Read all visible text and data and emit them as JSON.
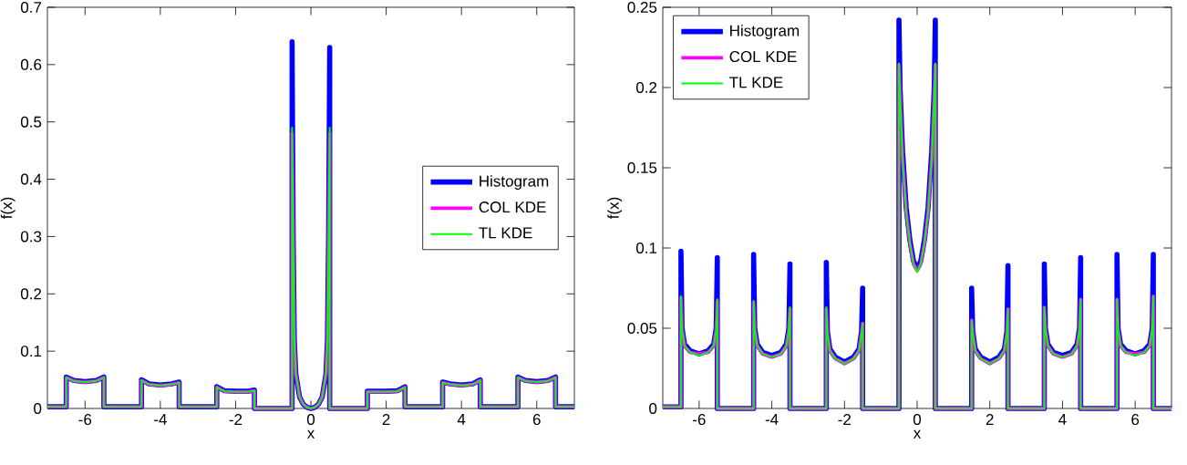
{
  "chart_data": [
    {
      "type": "line",
      "xlabel": "x",
      "ylabel": "f(x)",
      "xlim": [
        -7,
        7
      ],
      "ylim": [
        0,
        0.7
      ],
      "xticks": [
        -6,
        -4,
        -2,
        0,
        2,
        4,
        6
      ],
      "yticks": [
        0,
        0.1,
        0.2,
        0.3,
        0.4,
        0.5,
        0.6,
        0.7
      ],
      "legend": "right",
      "x": [
        -7,
        -6.5,
        -6.5,
        -6.3,
        -6,
        -5.7,
        -5.5,
        -5.5,
        -4.5,
        -4.5,
        -4.3,
        -4,
        -3.7,
        -3.5,
        -3.5,
        -2.5,
        -2.5,
        -2.3,
        -2,
        -1.7,
        -1.5,
        -1.5,
        -0.5,
        -0.5,
        -0.47,
        -0.44,
        -0.4,
        -0.3,
        -0.2,
        -0.1,
        0,
        0.1,
        0.2,
        0.3,
        0.4,
        0.44,
        0.47,
        0.5,
        0.5,
        1.5,
        1.5,
        1.7,
        2,
        2.3,
        2.5,
        2.5,
        3.5,
        3.5,
        3.7,
        4,
        4.3,
        4.5,
        4.5,
        5.5,
        5.5,
        5.7,
        6,
        6.3,
        6.5,
        6.5,
        7
      ],
      "series": [
        {
          "name": "Histogram",
          "color": "#0000ff",
          "values": [
            0.003,
            0.003,
            0.055,
            0.049,
            0.047,
            0.049,
            0.055,
            0.003,
            0.003,
            0.05,
            0.043,
            0.041,
            0.043,
            0.046,
            0.003,
            0.003,
            0.038,
            0.031,
            0.03,
            0.03,
            0.032,
            0,
            0,
            0.64,
            0.3,
            0.12,
            0.06,
            0.02,
            0.007,
            0.002,
            0,
            0.002,
            0.007,
            0.02,
            0.06,
            0.12,
            0.3,
            0.63,
            0,
            0,
            0.03,
            0.03,
            0.03,
            0.031,
            0.038,
            0.003,
            0.003,
            0.046,
            0.043,
            0.041,
            0.043,
            0.05,
            0.003,
            0.003,
            0.055,
            0.049,
            0.047,
            0.049,
            0.055,
            0.003,
            0.003
          ]
        },
        {
          "name": "COL KDE",
          "color": "#ff00ff",
          "values": [
            0.003,
            0.003,
            0.054,
            0.048,
            0.046,
            0.048,
            0.054,
            0.003,
            0.003,
            0.049,
            0.042,
            0.04,
            0.042,
            0.045,
            0.003,
            0.003,
            0.037,
            0.03,
            0.029,
            0.029,
            0.031,
            0,
            0,
            0.48,
            0.3,
            0.12,
            0.06,
            0.02,
            0.007,
            0.002,
            0,
            0.002,
            0.007,
            0.02,
            0.06,
            0.12,
            0.3,
            0.48,
            0,
            0,
            0.029,
            0.029,
            0.029,
            0.03,
            0.037,
            0.003,
            0.003,
            0.045,
            0.042,
            0.04,
            0.042,
            0.049,
            0.003,
            0.003,
            0.054,
            0.048,
            0.046,
            0.048,
            0.054,
            0.003,
            0.003
          ]
        },
        {
          "name": "TL KDE",
          "color": "#00ff00",
          "values": [
            0.003,
            0.003,
            0.054,
            0.048,
            0.046,
            0.048,
            0.054,
            0.003,
            0.003,
            0.049,
            0.042,
            0.04,
            0.042,
            0.045,
            0.003,
            0.003,
            0.037,
            0.03,
            0.029,
            0.029,
            0.031,
            0,
            0,
            0.49,
            0.3,
            0.12,
            0.06,
            0.02,
            0.007,
            0.002,
            0,
            0.002,
            0.007,
            0.02,
            0.06,
            0.12,
            0.3,
            0.49,
            0,
            0,
            0.029,
            0.029,
            0.029,
            0.03,
            0.037,
            0.003,
            0.003,
            0.045,
            0.042,
            0.04,
            0.042,
            0.049,
            0.003,
            0.003,
            0.054,
            0.048,
            0.046,
            0.048,
            0.054,
            0.003,
            0.003
          ]
        }
      ]
    },
    {
      "type": "line",
      "xlabel": "x",
      "ylabel": "f(x)",
      "xlim": [
        -7,
        7
      ],
      "ylim": [
        0,
        0.25
      ],
      "xticks": [
        -6,
        -4,
        -2,
        0,
        2,
        4,
        6
      ],
      "yticks": [
        0,
        0.05,
        0.1,
        0.15,
        0.2,
        0.25
      ],
      "legend": "top left",
      "x": [
        -7,
        -6.5,
        -6.5,
        -6.47,
        -6.4,
        -6.25,
        -6,
        -5.75,
        -5.6,
        -5.53,
        -5.5,
        -5.5,
        -4.5,
        -4.5,
        -4.47,
        -4.4,
        -4.25,
        -4,
        -3.75,
        -3.6,
        -3.53,
        -3.5,
        -3.5,
        -2.5,
        -2.5,
        -2.47,
        -2.4,
        -2.25,
        -2,
        -1.75,
        -1.6,
        -1.53,
        -1.5,
        -1.5,
        -0.5,
        -0.5,
        -0.47,
        -0.4,
        -0.3,
        -0.2,
        -0.1,
        0,
        0.1,
        0.2,
        0.3,
        0.4,
        0.47,
        0.5,
        0.5,
        1.5,
        1.5,
        1.53,
        1.6,
        1.75,
        2,
        2.25,
        2.4,
        2.47,
        2.5,
        2.5,
        3.5,
        3.5,
        3.53,
        3.6,
        3.75,
        4,
        4.25,
        4.4,
        4.47,
        4.5,
        4.5,
        5.5,
        5.5,
        5.53,
        5.6,
        5.75,
        6,
        6.25,
        6.4,
        6.47,
        6.5,
        6.5,
        7
      ],
      "series": [
        {
          "name": "Histogram",
          "color": "#0000ff",
          "values": [
            0.001,
            0.001,
            0.098,
            0.05,
            0.04,
            0.036,
            0.034,
            0.036,
            0.04,
            0.05,
            0.094,
            0,
            0,
            0.096,
            0.05,
            0.04,
            0.035,
            0.033,
            0.035,
            0.04,
            0.05,
            0.09,
            0,
            0,
            0.091,
            0.048,
            0.037,
            0.032,
            0.029,
            0.032,
            0.037,
            0.048,
            0.075,
            0,
            0,
            0.242,
            0.2,
            0.16,
            0.125,
            0.105,
            0.092,
            0.087,
            0.092,
            0.105,
            0.125,
            0.16,
            0.2,
            0.242,
            0,
            0,
            0.075,
            0.048,
            0.037,
            0.032,
            0.029,
            0.032,
            0.037,
            0.048,
            0.089,
            0,
            0,
            0.09,
            0.05,
            0.04,
            0.035,
            0.033,
            0.035,
            0.04,
            0.05,
            0.094,
            0,
            0,
            0.096,
            0.05,
            0.04,
            0.036,
            0.034,
            0.036,
            0.04,
            0.05,
            0.096,
            0,
            0
          ]
        },
        {
          "name": "COL KDE",
          "color": "#ff00ff",
          "values": [
            0.001,
            0.001,
            0.069,
            0.049,
            0.039,
            0.035,
            0.034,
            0.035,
            0.039,
            0.049,
            0.067,
            0,
            0,
            0.066,
            0.049,
            0.039,
            0.034,
            0.032,
            0.034,
            0.039,
            0.049,
            0.062,
            0,
            0,
            0.062,
            0.047,
            0.036,
            0.031,
            0.028,
            0.031,
            0.036,
            0.047,
            0.053,
            0,
            0,
            0.214,
            0.195,
            0.155,
            0.122,
            0.103,
            0.09,
            0.086,
            0.09,
            0.103,
            0.122,
            0.155,
            0.195,
            0.214,
            0,
            0,
            0.055,
            0.047,
            0.036,
            0.031,
            0.028,
            0.031,
            0.036,
            0.047,
            0.062,
            0,
            0,
            0.063,
            0.049,
            0.039,
            0.034,
            0.032,
            0.034,
            0.039,
            0.049,
            0.068,
            0,
            0,
            0.068,
            0.049,
            0.039,
            0.035,
            0.034,
            0.035,
            0.039,
            0.049,
            0.07,
            0,
            0
          ]
        },
        {
          "name": "TL KDE",
          "color": "#00ff00",
          "values": [
            0.001,
            0.001,
            0.07,
            0.049,
            0.039,
            0.035,
            0.033,
            0.035,
            0.039,
            0.049,
            0.068,
            0,
            0,
            0.067,
            0.049,
            0.039,
            0.034,
            0.032,
            0.034,
            0.039,
            0.049,
            0.063,
            0,
            0,
            0.063,
            0.047,
            0.036,
            0.031,
            0.028,
            0.031,
            0.036,
            0.047,
            0.053,
            0,
            0,
            0.215,
            0.195,
            0.155,
            0.122,
            0.103,
            0.09,
            0.085,
            0.09,
            0.103,
            0.122,
            0.155,
            0.195,
            0.215,
            0,
            0,
            0.055,
            0.047,
            0.036,
            0.031,
            0.028,
            0.031,
            0.036,
            0.047,
            0.062,
            0,
            0,
            0.063,
            0.049,
            0.039,
            0.034,
            0.032,
            0.034,
            0.039,
            0.049,
            0.068,
            0,
            0,
            0.068,
            0.049,
            0.039,
            0.035,
            0.033,
            0.035,
            0.039,
            0.049,
            0.07,
            0,
            0
          ]
        }
      ]
    }
  ]
}
